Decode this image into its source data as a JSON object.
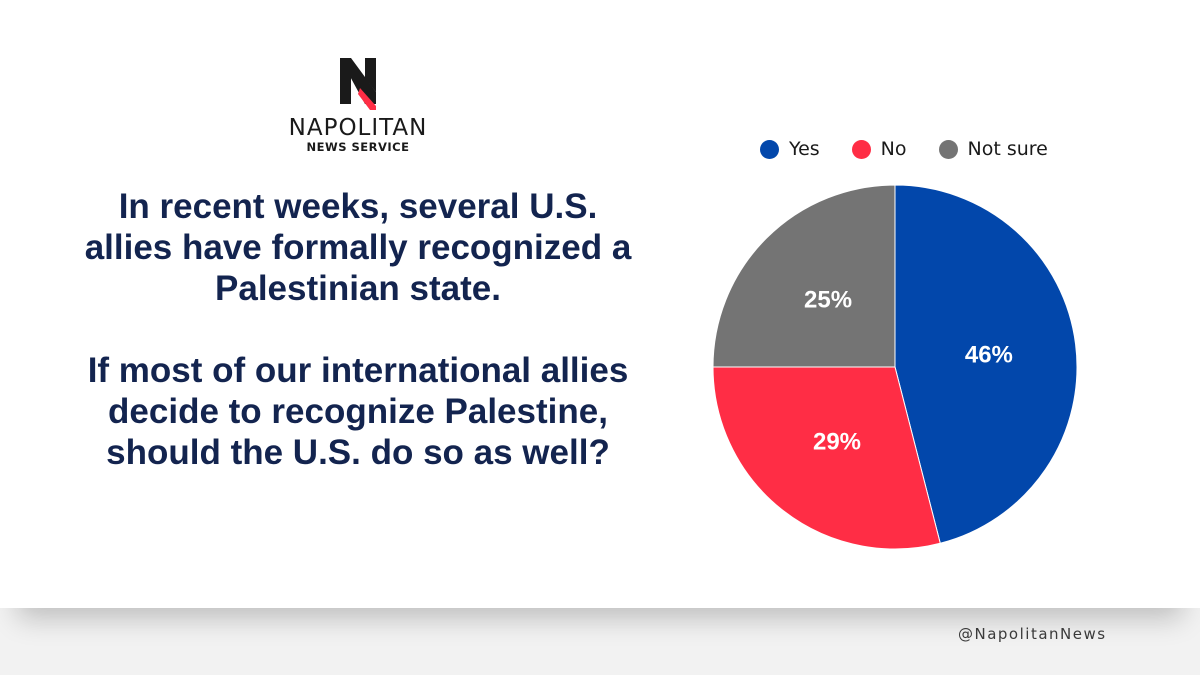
{
  "brand": {
    "name": "NAPOLITAN",
    "subtitle": "NEWS SERVICE",
    "logo_icon": "napolitan-n-logo",
    "colors": {
      "navy": "#13244f",
      "red": "#ff2d45"
    }
  },
  "question": {
    "paragraph1": "In recent weeks, several U.S. allies have formally recognized a Palestinian state.",
    "paragraph2": "If most of our international allies decide to recognize Palestine, should the U.S. do so as well?"
  },
  "chart_data": {
    "type": "pie",
    "unit": "%",
    "legend_position": "top",
    "slices": [
      {
        "name": "Yes",
        "value": 46,
        "label": "46%",
        "color": "#0247ab"
      },
      {
        "name": "No",
        "value": 29,
        "label": "29%",
        "color": "#ff2d45"
      },
      {
        "name": "Not sure",
        "value": 25,
        "label": "25%",
        "color": "#747474"
      }
    ]
  },
  "footer": {
    "handle": "@NapolitanNews"
  }
}
